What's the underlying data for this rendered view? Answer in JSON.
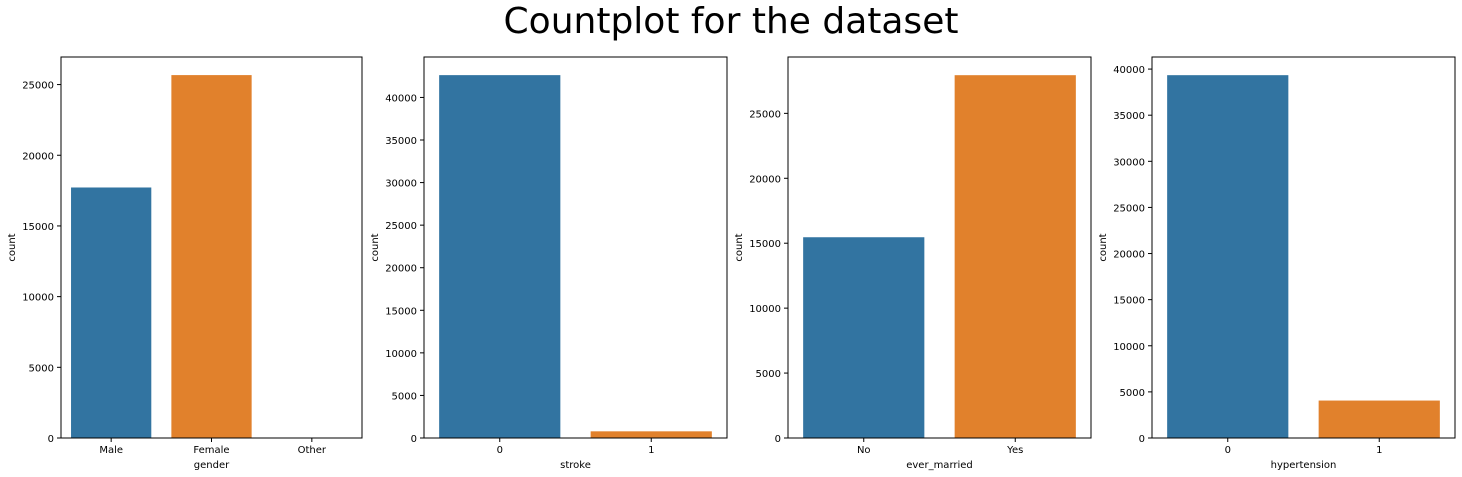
{
  "title": "Countplot for the dataset",
  "colors": {
    "blue": "#3274a1",
    "orange": "#e1812c",
    "green": "#3a923a"
  },
  "chart_data": [
    {
      "type": "bar",
      "categories": [
        "Male",
        "Female",
        "Other"
      ],
      "values": [
        17720,
        25670,
        11
      ],
      "xlabel": "gender",
      "ylabel": "count",
      "ylim": [
        0,
        26950
      ],
      "yticks": [
        0,
        5000,
        10000,
        15000,
        20000,
        25000
      ],
      "grid": false
    },
    {
      "type": "bar",
      "categories": [
        "0",
        "1"
      ],
      "values": [
        42620,
        783
      ],
      "xlabel": "stroke",
      "ylabel": "count",
      "ylim": [
        0,
        44750
      ],
      "yticks": [
        0,
        5000,
        10000,
        15000,
        20000,
        25000,
        30000,
        35000,
        40000
      ],
      "grid": false
    },
    {
      "type": "bar",
      "categories": [
        "No",
        "Yes"
      ],
      "values": [
        15460,
        27940
      ],
      "xlabel": "ever_married",
      "ylabel": "count",
      "ylim": [
        0,
        29340
      ],
      "yticks": [
        0,
        5000,
        10000,
        15000,
        20000,
        25000
      ],
      "grid": false
    },
    {
      "type": "bar",
      "categories": [
        "0",
        "1"
      ],
      "values": [
        39340,
        4060
      ],
      "xlabel": "hypertension",
      "ylabel": "count",
      "ylim": [
        0,
        41310
      ],
      "yticks": [
        0,
        5000,
        10000,
        15000,
        20000,
        25000,
        30000,
        35000,
        40000
      ],
      "grid": false
    }
  ]
}
